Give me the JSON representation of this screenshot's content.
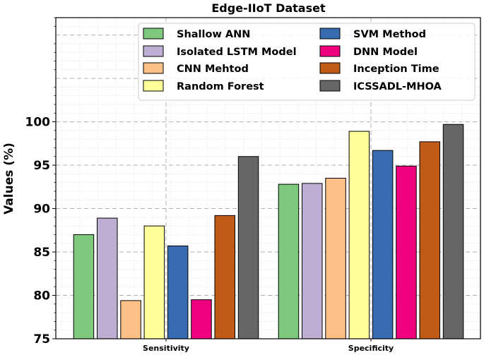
{
  "chart_data": {
    "type": "bar",
    "title": "Edge-IIoT Dataset",
    "xlabel": "",
    "ylabel": "Values (%)",
    "ylim": [
      75,
      112
    ],
    "yticks": [
      75,
      80,
      85,
      90,
      95,
      100
    ],
    "categories": [
      "Sensitivity",
      "Specificity"
    ],
    "legend_position": "top-right",
    "grid": true,
    "series": [
      {
        "name": "Shallow ANN",
        "color": "#7fc97f",
        "values": [
          87.0,
          92.8
        ]
      },
      {
        "name": "Isolated LSTM Model",
        "color": "#beaed4",
        "values": [
          88.9,
          92.9
        ]
      },
      {
        "name": "CNN Mehtod",
        "color": "#fdc086",
        "values": [
          79.4,
          93.5
        ]
      },
      {
        "name": "Random Forest",
        "color": "#ffff99",
        "values": [
          88.0,
          98.9
        ]
      },
      {
        "name": "SVM Method",
        "color": "#386cb0",
        "values": [
          85.7,
          96.7
        ]
      },
      {
        "name": "DNN Model",
        "color": "#f0027f",
        "values": [
          79.5,
          94.9
        ]
      },
      {
        "name": "Inception Time",
        "color": "#bf5b17",
        "values": [
          89.2,
          97.7
        ]
      },
      {
        "name": "ICSSADL-MHOA",
        "color": "#666666",
        "values": [
          96.0,
          99.7
        ]
      }
    ]
  }
}
